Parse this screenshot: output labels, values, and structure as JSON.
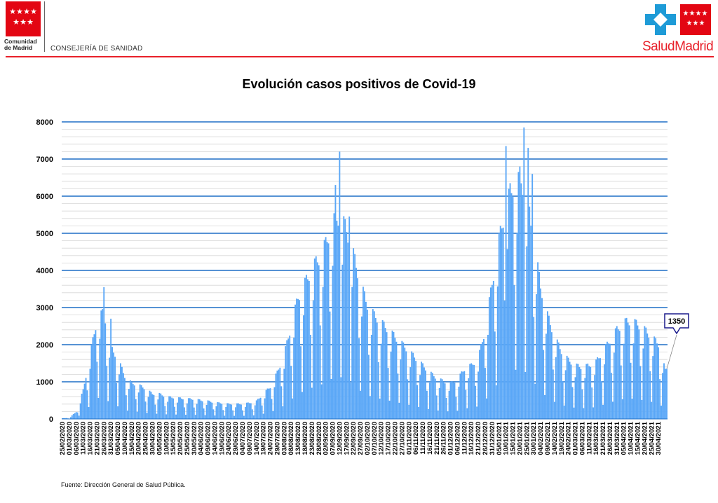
{
  "header": {
    "org_name_line1": "Comunidad",
    "org_name_line2": "de Madrid",
    "department": "CONSEJERÍA DE SANIDAD",
    "brand": "SaludMadrid",
    "colors": {
      "red": "#e30613",
      "blue": "#1e9bd7"
    }
  },
  "chart_data": {
    "type": "bar",
    "title": "Evolución casos positivos de Covid-19",
    "xlabel": "",
    "ylabel": "",
    "ylim": [
      0,
      8000
    ],
    "yticks": [
      0,
      1000,
      2000,
      3000,
      4000,
      5000,
      6000,
      7000,
      8000
    ],
    "grid": true,
    "bar_color": "#5aa7f7",
    "x_start": "25/02/2020",
    "x_end": "06/05/2021",
    "x_tick_labels": [
      "25/02/2020",
      "01/03/2020",
      "06/03/2020",
      "11/03/2020",
      "16/03/2020",
      "21/03/2020",
      "26/03/2020",
      "31/03/2020",
      "05/04/2020",
      "10/04/2020",
      "15/04/2020",
      "20/04/2020",
      "25/04/2020",
      "30/04/2020",
      "05/05/2020",
      "10/05/2020",
      "15/05/2020",
      "20/05/2020",
      "25/05/2020",
      "30/05/2020",
      "04/06/2020",
      "09/06/2020",
      "14/06/2020",
      "19/06/2020",
      "24/06/2020",
      "29/06/2020",
      "04/07/2020",
      "09/07/2020",
      "14/07/2020",
      "19/07/2020",
      "24/07/2020",
      "29/07/2020",
      "03/08/2020",
      "08/08/2020",
      "13/08/2020",
      "18/08/2020",
      "23/08/2020",
      "28/08/2020",
      "02/09/2020",
      "07/09/2020",
      "12/09/2020",
      "17/09/2020",
      "22/09/2020",
      "27/09/2020",
      "02/10/2020",
      "07/10/2020",
      "12/10/2020",
      "17/10/2020",
      "22/10/2020",
      "27/10/2020",
      "01/11/2020",
      "06/11/2020",
      "11/11/2020",
      "16/11/2020",
      "21/11/2020",
      "26/11/2020",
      "01/12/2020",
      "06/12/2020",
      "11/12/2020",
      "16/12/2020",
      "21/12/2020",
      "26/12/2020",
      "31/12/2020",
      "05/01/2021",
      "10/01/2021",
      "15/01/2021",
      "20/01/2021",
      "25/01/2021",
      "30/01/2021",
      "04/02/2021",
      "09/02/2021",
      "14/02/2021",
      "19/02/2021",
      "24/02/2021",
      "01/03/2021",
      "06/03/2021",
      "11/03/2021",
      "16/03/2021",
      "21/03/2021",
      "26/03/2021",
      "31/03/2021",
      "05/04/2021",
      "10/04/2021",
      "15/04/2021",
      "20/04/2021",
      "25/04/2021",
      "30/04/2021"
    ],
    "envelope_day_value": [
      [
        0,
        20
      ],
      [
        5,
        30
      ],
      [
        10,
        200
      ],
      [
        15,
        800
      ],
      [
        20,
        1800
      ],
      [
        25,
        2800
      ],
      [
        30,
        3000
      ],
      [
        35,
        2000
      ],
      [
        40,
        1700
      ],
      [
        45,
        1200
      ],
      [
        50,
        1000
      ],
      [
        55,
        950
      ],
      [
        60,
        850
      ],
      [
        65,
        700
      ],
      [
        70,
        700
      ],
      [
        75,
        620
      ],
      [
        80,
        600
      ],
      [
        85,
        580
      ],
      [
        90,
        560
      ],
      [
        95,
        560
      ],
      [
        100,
        520
      ],
      [
        105,
        500
      ],
      [
        110,
        460
      ],
      [
        115,
        440
      ],
      [
        120,
        420
      ],
      [
        125,
        420
      ],
      [
        130,
        420
      ],
      [
        135,
        450
      ],
      [
        140,
        500
      ],
      [
        145,
        700
      ],
      [
        150,
        900
      ],
      [
        155,
        1300
      ],
      [
        160,
        1800
      ],
      [
        165,
        2600
      ],
      [
        170,
        3400
      ],
      [
        175,
        3800
      ],
      [
        180,
        4200
      ],
      [
        185,
        4500
      ],
      [
        190,
        4900
      ],
      [
        195,
        5500
      ],
      [
        200,
        5700
      ],
      [
        205,
        5300
      ],
      [
        210,
        4600
      ],
      [
        215,
        3800
      ],
      [
        220,
        3200
      ],
      [
        225,
        2900
      ],
      [
        230,
        2700
      ],
      [
        235,
        2500
      ],
      [
        240,
        2300
      ],
      [
        245,
        2100
      ],
      [
        250,
        1900
      ],
      [
        255,
        1700
      ],
      [
        260,
        1500
      ],
      [
        265,
        1300
      ],
      [
        270,
        1150
      ],
      [
        275,
        1050
      ],
      [
        280,
        1000
      ],
      [
        285,
        1100
      ],
      [
        290,
        1400
      ],
      [
        295,
        1500
      ],
      [
        300,
        1700
      ],
      [
        305,
        2500
      ],
      [
        310,
        3800
      ],
      [
        315,
        5000
      ],
      [
        320,
        6000
      ],
      [
        325,
        6500
      ],
      [
        330,
        6800
      ],
      [
        335,
        6200
      ],
      [
        340,
        5000
      ],
      [
        345,
        3700
      ],
      [
        350,
        2900
      ],
      [
        355,
        2300
      ],
      [
        360,
        1900
      ],
      [
        365,
        1650
      ],
      [
        370,
        1500
      ],
      [
        375,
        1450
      ],
      [
        380,
        1500
      ],
      [
        385,
        1600
      ],
      [
        390,
        1900
      ],
      [
        395,
        2200
      ],
      [
        400,
        2500
      ],
      [
        405,
        2700
      ],
      [
        410,
        2750
      ],
      [
        415,
        2650
      ],
      [
        420,
        2500
      ],
      [
        425,
        2300
      ],
      [
        430,
        2100
      ],
      [
        435,
        1350
      ]
    ],
    "annotated_peaks_day_value": [
      [
        30,
        3550
      ],
      [
        35,
        2700
      ],
      [
        200,
        7200
      ],
      [
        197,
        6300
      ],
      [
        207,
        5450
      ],
      [
        320,
        7350
      ],
      [
        323,
        6350
      ],
      [
        329,
        6650
      ],
      [
        333,
        7850
      ],
      [
        336,
        7300
      ],
      [
        339,
        6600
      ]
    ],
    "weekly_pattern_fractions": [
      1.0,
      1.0,
      0.95,
      0.92,
      0.55,
      0.2,
      0.75
    ],
    "last_value": 1350,
    "callout_label": "1350",
    "source_text": "Fuente: Dirección General de Salud Pública."
  }
}
